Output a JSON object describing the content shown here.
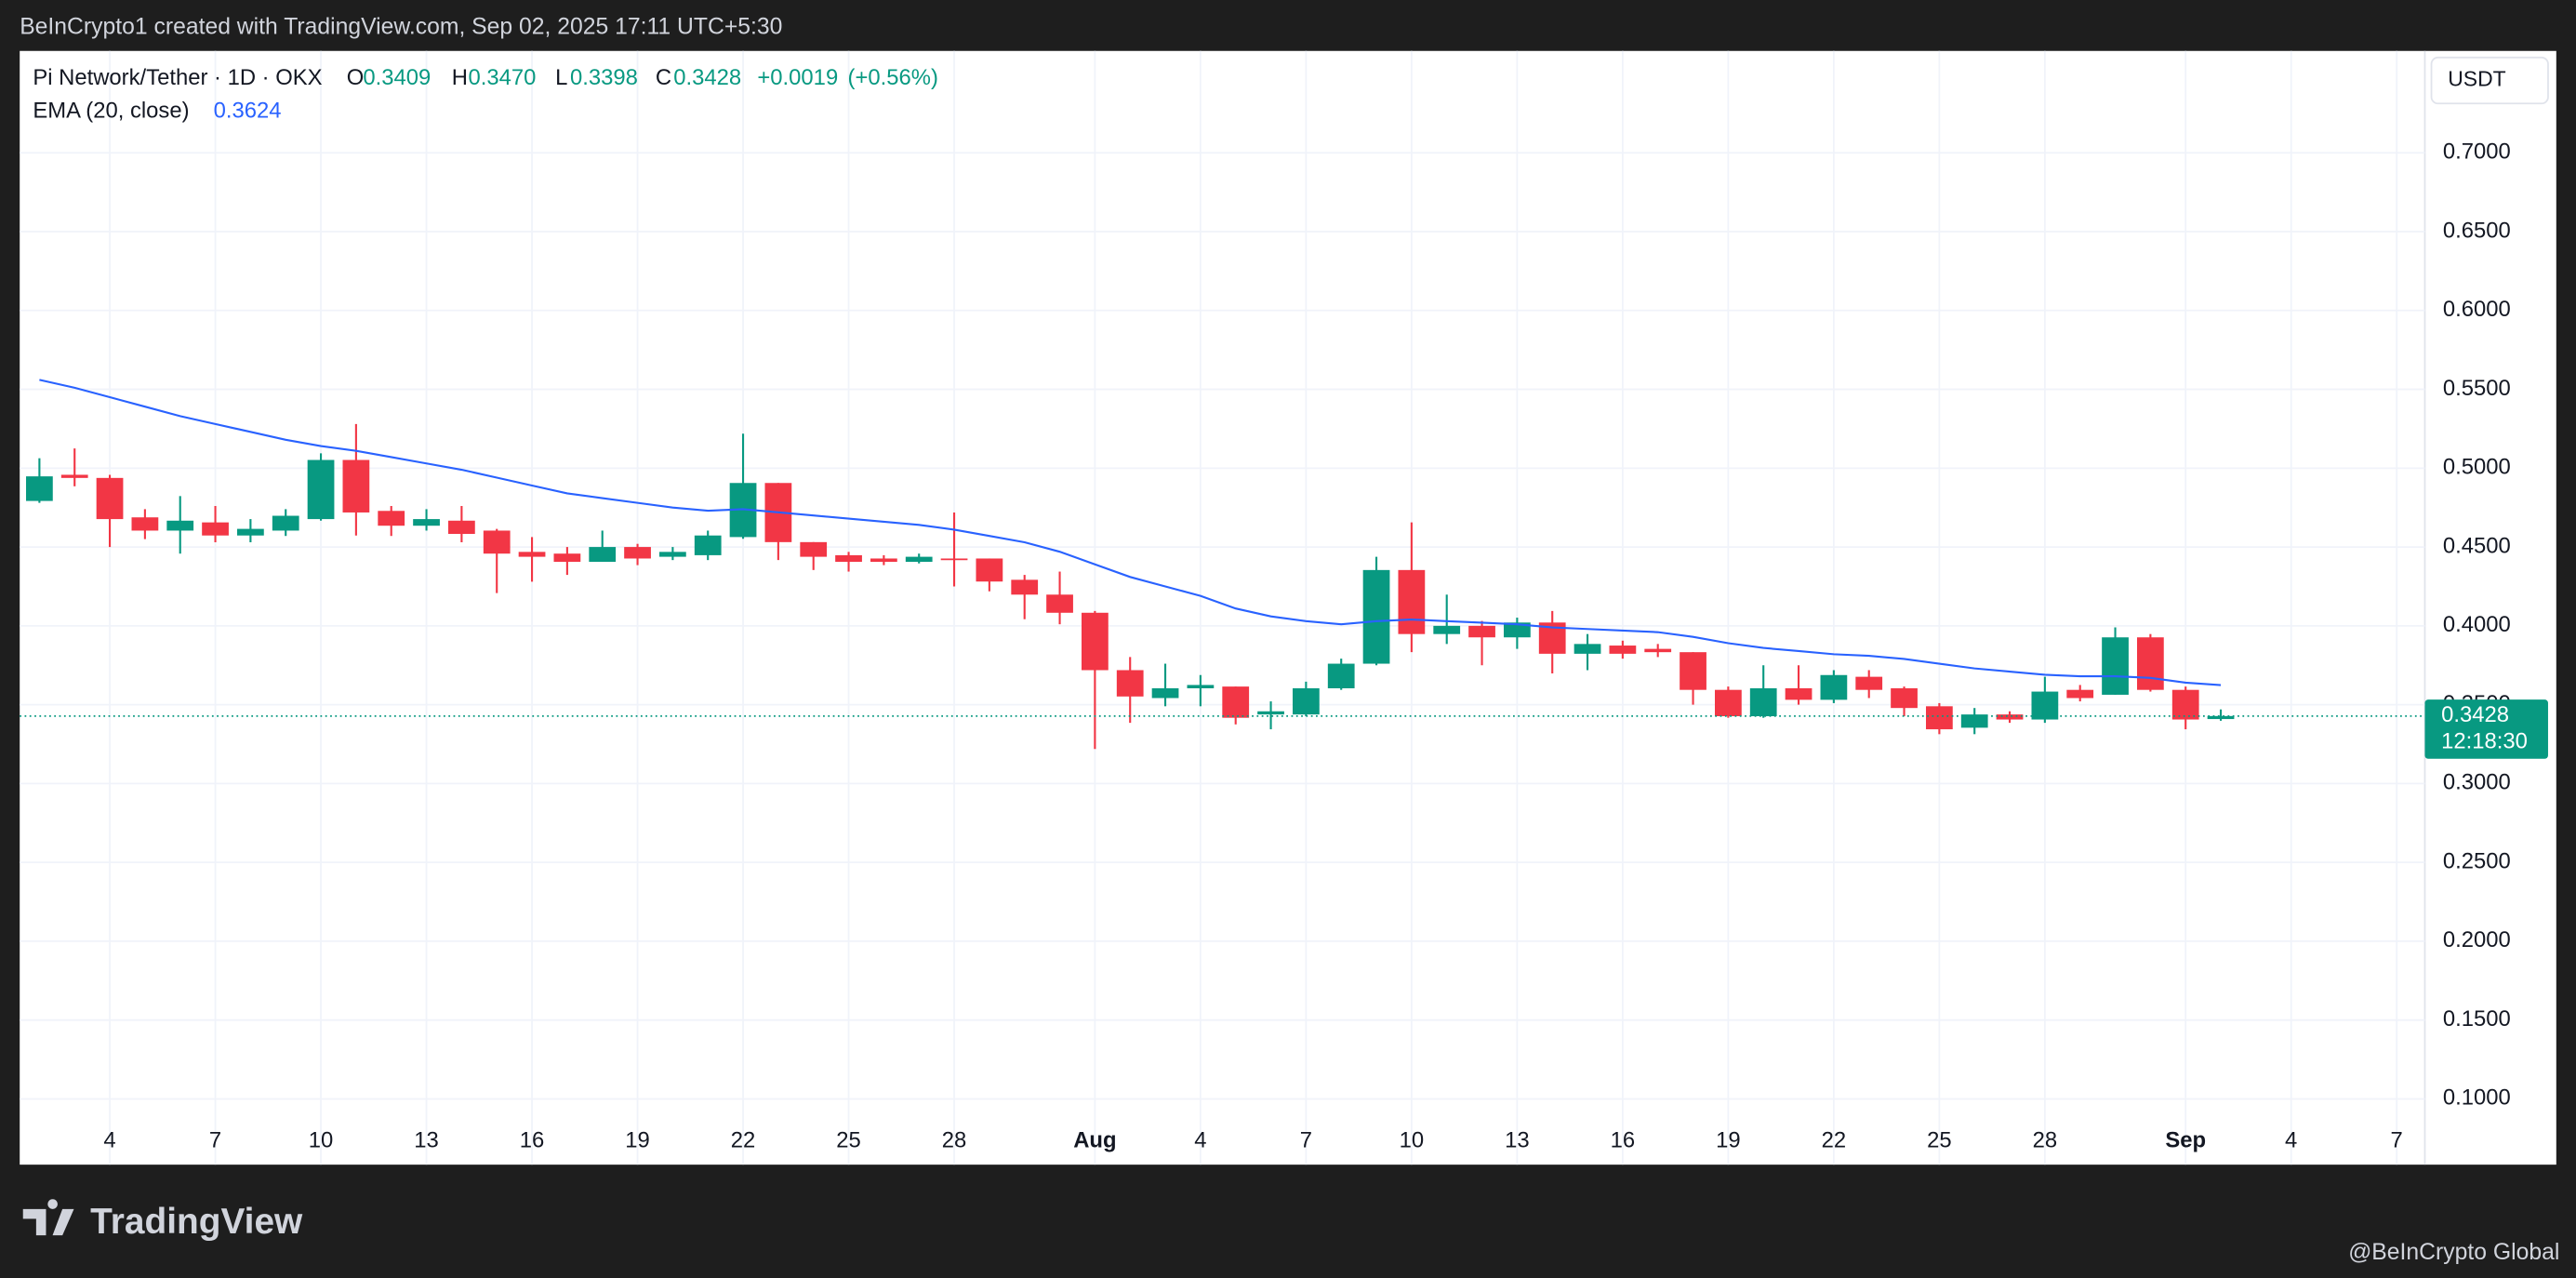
{
  "chart_data": {
    "type": "candlestick",
    "attribution": "BeInCrypto1 created with TradingView.com, Sep 02, 2025 17:11 UTC+5:30",
    "title": "Pi Network/Tether · 1D · OKX",
    "ohlc_letters": [
      "O",
      "H",
      "L",
      "C"
    ],
    "ohlc_labels": [
      "0.3409",
      "0.3470",
      "0.3398",
      "0.3428"
    ],
    "change": "+0.0019",
    "change_pct": "(+0.56%)",
    "currency": "USDT",
    "countdown": "12:18:30",
    "brand": "TradingView",
    "watermark": "@BeInCrypto Global",
    "up_color": "#089981",
    "down_color": "#f23645",
    "grid": true,
    "ylim": [
      0.0583,
      0.7646
    ],
    "yticks": [
      {
        "value": 0.1,
        "label": "0.1000"
      },
      {
        "value": 0.15,
        "label": "0.1500"
      },
      {
        "value": 0.2,
        "label": "0.2000"
      },
      {
        "value": 0.25,
        "label": "0.2500"
      },
      {
        "value": 0.3,
        "label": "0.3000"
      },
      {
        "value": 0.35,
        "label": "0.3500"
      },
      {
        "value": 0.4,
        "label": "0.4000"
      },
      {
        "value": 0.45,
        "label": "0.4500"
      },
      {
        "value": 0.5,
        "label": "0.5000"
      },
      {
        "value": 0.55,
        "label": "0.5500"
      },
      {
        "value": 0.6,
        "label": "0.6000"
      },
      {
        "value": 0.65,
        "label": "0.6500"
      },
      {
        "value": 0.7,
        "label": "0.7000"
      }
    ],
    "xlim": [
      -0.56,
      67.8
    ],
    "xticks": [
      {
        "value": 2,
        "label": "4"
      },
      {
        "value": 5,
        "label": "7"
      },
      {
        "value": 8,
        "label": "10"
      },
      {
        "value": 11,
        "label": "13"
      },
      {
        "value": 14,
        "label": "16"
      },
      {
        "value": 17,
        "label": "19"
      },
      {
        "value": 20,
        "label": "22"
      },
      {
        "value": 23,
        "label": "25"
      },
      {
        "value": 26,
        "label": "28"
      },
      {
        "value": 30,
        "label": "Aug"
      },
      {
        "value": 33,
        "label": "4"
      },
      {
        "value": 36,
        "label": "7"
      },
      {
        "value": 39,
        "label": "10"
      },
      {
        "value": 42,
        "label": "13"
      },
      {
        "value": 45,
        "label": "16"
      },
      {
        "value": 48,
        "label": "19"
      },
      {
        "value": 51,
        "label": "22"
      },
      {
        "value": 54,
        "label": "25"
      },
      {
        "value": 57,
        "label": "28"
      },
      {
        "value": 61,
        "label": "Sep"
      },
      {
        "value": 64,
        "label": "4"
      },
      {
        "value": 67,
        "label": "7"
      }
    ],
    "open": [
      0.4792,
      0.4958,
      0.4938,
      0.4688,
      0.4604,
      0.4656,
      0.4573,
      0.4604,
      0.4677,
      0.5052,
      0.4729,
      0.4635,
      0.4667,
      0.4604,
      0.4469,
      0.4458,
      0.4406,
      0.45,
      0.4438,
      0.4448,
      0.4563,
      0.4906,
      0.4531,
      0.4448,
      0.4427,
      0.4406,
      0.4427,
      0.4427,
      0.4292,
      0.4198,
      0.4083,
      0.3719,
      0.3542,
      0.3604,
      0.3615,
      0.3438,
      0.3438,
      0.3604,
      0.376,
      0.4354,
      0.3948,
      0.4,
      0.3927,
      0.4021,
      0.3823,
      0.3875,
      0.3854,
      0.3833,
      0.3594,
      0.3427,
      0.3604,
      0.3531,
      0.3677,
      0.3604,
      0.349,
      0.3354,
      0.3438,
      0.3406,
      0.3594,
      0.3563,
      0.3927,
      0.3594,
      0.3409
    ],
    "high": [
      0.5063,
      0.5125,
      0.4958,
      0.474,
      0.4823,
      0.476,
      0.4677,
      0.474,
      0.5094,
      0.528,
      0.476,
      0.474,
      0.476,
      0.4615,
      0.4563,
      0.45,
      0.4604,
      0.452,
      0.45,
      0.4604,
      0.5219,
      0.4906,
      0.4531,
      0.4469,
      0.4448,
      0.4458,
      0.4719,
      0.4427,
      0.4323,
      0.4344,
      0.4094,
      0.3802,
      0.376,
      0.3688,
      0.3615,
      0.3521,
      0.3646,
      0.3792,
      0.4438,
      0.4656,
      0.4198,
      0.4031,
      0.4052,
      0.4094,
      0.3948,
      0.3906,
      0.3885,
      0.3833,
      0.3615,
      0.375,
      0.375,
      0.3719,
      0.3719,
      0.3615,
      0.351,
      0.3479,
      0.3458,
      0.3677,
      0.3625,
      0.399,
      0.3948,
      0.3615,
      0.347
    ],
    "low": [
      0.478,
      0.4885,
      0.45,
      0.455,
      0.4458,
      0.453,
      0.453,
      0.457,
      0.4667,
      0.4573,
      0.457,
      0.4604,
      0.453,
      0.4208,
      0.428,
      0.4323,
      0.4406,
      0.4385,
      0.4417,
      0.4417,
      0.4552,
      0.4417,
      0.4354,
      0.4344,
      0.4385,
      0.4396,
      0.425,
      0.4219,
      0.4042,
      0.401,
      0.3219,
      0.3385,
      0.349,
      0.349,
      0.3375,
      0.3344,
      0.3427,
      0.3594,
      0.375,
      0.3833,
      0.3885,
      0.375,
      0.3854,
      0.3698,
      0.3719,
      0.3792,
      0.3802,
      0.35,
      0.3417,
      0.3417,
      0.35,
      0.351,
      0.3542,
      0.3427,
      0.3313,
      0.3313,
      0.3385,
      0.3385,
      0.3521,
      0.3563,
      0.3583,
      0.3344,
      0.3398
    ],
    "close": [
      0.4948,
      0.4938,
      0.4677,
      0.4604,
      0.4667,
      0.4573,
      0.4615,
      0.4698,
      0.5052,
      0.4719,
      0.4635,
      0.4677,
      0.4583,
      0.4458,
      0.4438,
      0.4406,
      0.45,
      0.4427,
      0.4469,
      0.4573,
      0.4906,
      0.4531,
      0.4438,
      0.4406,
      0.4406,
      0.4438,
      0.4417,
      0.4281,
      0.4198,
      0.4083,
      0.3719,
      0.3552,
      0.3604,
      0.3625,
      0.3417,
      0.3458,
      0.3604,
      0.376,
      0.4354,
      0.3948,
      0.4,
      0.3927,
      0.4021,
      0.3823,
      0.3885,
      0.3823,
      0.3833,
      0.3594,
      0.3427,
      0.3604,
      0.3531,
      0.3688,
      0.3594,
      0.3479,
      0.3344,
      0.3438,
      0.3406,
      0.3583,
      0.3542,
      0.3927,
      0.3594,
      0.3406,
      0.3428
    ],
    "ema": {
      "name": "EMA (20, close)",
      "color": "#2962ff",
      "values": [
        0.556,
        0.551,
        0.545,
        0.539,
        0.533,
        0.528,
        0.523,
        0.518,
        0.514,
        0.511,
        0.507,
        0.503,
        0.499,
        0.494,
        0.489,
        0.484,
        0.481,
        0.478,
        0.475,
        0.473,
        0.474,
        0.472,
        0.47,
        0.468,
        0.466,
        0.464,
        0.461,
        0.457,
        0.453,
        0.447,
        0.439,
        0.431,
        0.425,
        0.419,
        0.411,
        0.406,
        0.403,
        0.401,
        0.403,
        0.404,
        0.403,
        0.402,
        0.401,
        0.399,
        0.398,
        0.397,
        0.396,
        0.393,
        0.389,
        0.386,
        0.384,
        0.382,
        0.381,
        0.379,
        0.376,
        0.373,
        0.371,
        0.369,
        0.368,
        0.368,
        0.367,
        0.364,
        0.3624
      ]
    }
  }
}
